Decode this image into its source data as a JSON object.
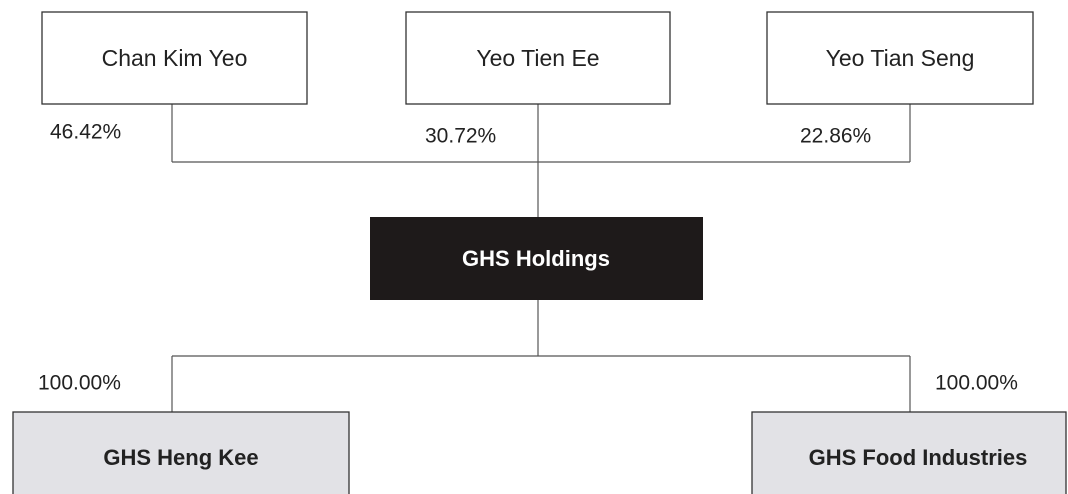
{
  "nodes": [
    {
      "label": "Chan Kim Yeo"
    },
    {
      "label": "Yeo Tien Ee"
    },
    {
      "label": "Yeo Tian Seng"
    },
    {
      "label": "GHS Holdings"
    },
    {
      "label": "GHS Heng Kee"
    },
    {
      "label": "GHS Food Industries"
    }
  ],
  "edges": [
    {
      "label": "46.42%"
    },
    {
      "label": "30.72%"
    },
    {
      "label": "22.86%"
    },
    {
      "label": "100.00%"
    },
    {
      "label": "100.00%"
    }
  ]
}
